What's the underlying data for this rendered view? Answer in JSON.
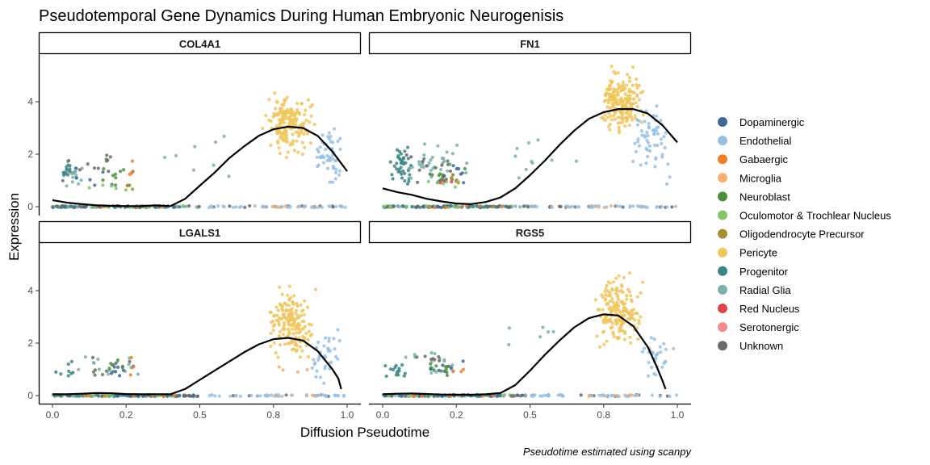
{
  "title": "Pseudotemporal Gene Dynamics During Human Embryonic Neurogenisis",
  "xlabel": "Diffusion Pseudotime",
  "ylabel": "Expression",
  "caption": "Pseudotime estimated using scanpy",
  "x_ticks": [
    "0.0",
    "0.2",
    "0.5",
    "0.8",
    "1.0"
  ],
  "y_ticks": [
    "0",
    "2",
    "4"
  ],
  "legend": [
    {
      "label": "Dopaminergic",
      "color": "#3b6897"
    },
    {
      "label": "Endothelial",
      "color": "#97c1e3"
    },
    {
      "label": "Gabaergic",
      "color": "#ef7f26"
    },
    {
      "label": "Microglia",
      "color": "#f8ae6c"
    },
    {
      "label": "Neuroblast",
      "color": "#4a8f38"
    },
    {
      "label": "Oculomotor & Trochlear Nucleus",
      "color": "#82c567"
    },
    {
      "label": "Oligodendrocyte Precursor",
      "color": "#a88f2f"
    },
    {
      "label": "Pericyte",
      "color": "#f0c65c"
    },
    {
      "label": "Progenitor",
      "color": "#3a8583"
    },
    {
      "label": "Radial Glia",
      "color": "#79b0aa"
    },
    {
      "label": "Red Nucleus",
      "color": "#e0434a"
    },
    {
      "label": "Serotonergic",
      "color": "#f58a8a"
    },
    {
      "label": "Unknown",
      "color": "#6e6868"
    }
  ],
  "chart_data": {
    "type": "scatter",
    "title": "Pseudotemporal Gene Dynamics During Human Embryonic Neurogenisis",
    "xlabel": "Diffusion Pseudotime",
    "ylabel": "Expression",
    "xlim": [
      -0.04,
      1.04
    ],
    "ylim": [
      -0.25,
      5.8
    ],
    "grid": false,
    "legend_position": "right",
    "smoother": "black loess curve per panel",
    "panels": [
      {
        "name": "COL4A1",
        "trend": [
          [
            0.0,
            0.25
          ],
          [
            0.05,
            0.15
          ],
          [
            0.1,
            0.1
          ],
          [
            0.15,
            0.05
          ],
          [
            0.2,
            0.03
          ],
          [
            0.25,
            0.02
          ],
          [
            0.3,
            0.02
          ],
          [
            0.35,
            0.05
          ],
          [
            0.4,
            0.02
          ],
          [
            0.45,
            0.3
          ],
          [
            0.5,
            0.8
          ],
          [
            0.55,
            1.3
          ],
          [
            0.6,
            1.85
          ],
          [
            0.65,
            2.3
          ],
          [
            0.7,
            2.7
          ],
          [
            0.75,
            2.95
          ],
          [
            0.8,
            3.05
          ],
          [
            0.85,
            3.0
          ],
          [
            0.9,
            2.7
          ],
          [
            0.95,
            2.1
          ],
          [
            1.0,
            1.35
          ]
        ],
        "clusters": [
          {
            "type": "Progenitor",
            "x": [
              0.0,
              0.1
            ],
            "y": [
              0.8,
              1.8
            ],
            "n": 18
          },
          {
            "type": "Radial Glia",
            "x": [
              0.0,
              0.15
            ],
            "y": [
              0.5,
              1.9
            ],
            "n": 14
          },
          {
            "type": "Unknown",
            "x": [
              0.0,
              0.3
            ],
            "y": [
              0.7,
              2.3
            ],
            "n": 10
          },
          {
            "type": "Neuroblast",
            "x": [
              0.1,
              0.3
            ],
            "y": [
              0.6,
              2.0
            ],
            "n": 10
          },
          {
            "type": "Gabaergic",
            "x": [
              0.24,
              0.28
            ],
            "y": [
              0.8,
              2.0
            ],
            "n": 4
          },
          {
            "type": "Oligodendrocyte Precursor",
            "x": [
              0.22,
              0.3
            ],
            "y": [
              0.5,
              1.5
            ],
            "n": 4
          },
          {
            "type": "Dopaminergic",
            "x": [
              0.05,
              0.3
            ],
            "y": [
              0.6,
              1.8
            ],
            "n": 6
          },
          {
            "type": "Oculomotor & Trochlear Nucleus",
            "x": [
              0.05,
              0.35
            ],
            "y": [
              0.4,
              1.0
            ],
            "n": 5
          },
          {
            "type": "Pericyte",
            "x": [
              0.7,
              0.9
            ],
            "y": [
              1.8,
              4.6
            ],
            "n": 180
          },
          {
            "type": "Endothelial",
            "x": [
              0.88,
              1.0
            ],
            "y": [
              0.5,
              3.5
            ],
            "n": 55
          },
          {
            "type": "Radial Glia",
            "x": [
              0.3,
              0.72
            ],
            "y": [
              0.5,
              3.0
            ],
            "n": 8
          }
        ]
      },
      {
        "name": "FN1",
        "trend": [
          [
            0.0,
            0.7
          ],
          [
            0.05,
            0.55
          ],
          [
            0.1,
            0.45
          ],
          [
            0.15,
            0.3
          ],
          [
            0.2,
            0.2
          ],
          [
            0.25,
            0.12
          ],
          [
            0.3,
            0.1
          ],
          [
            0.35,
            0.18
          ],
          [
            0.4,
            0.35
          ],
          [
            0.45,
            0.7
          ],
          [
            0.5,
            1.2
          ],
          [
            0.55,
            1.75
          ],
          [
            0.6,
            2.35
          ],
          [
            0.65,
            2.9
          ],
          [
            0.7,
            3.35
          ],
          [
            0.75,
            3.6
          ],
          [
            0.8,
            3.72
          ],
          [
            0.85,
            3.72
          ],
          [
            0.9,
            3.55
          ],
          [
            0.95,
            3.1
          ],
          [
            1.0,
            2.45
          ]
        ],
        "clusters": [
          {
            "type": "Progenitor",
            "x": [
              0.0,
              0.12
            ],
            "y": [
              0.5,
              2.5
            ],
            "n": 40
          },
          {
            "type": "Radial Glia",
            "x": [
              0.0,
              0.35
            ],
            "y": [
              0.4,
              2.6
            ],
            "n": 35
          },
          {
            "type": "Unknown",
            "x": [
              0.0,
              0.3
            ],
            "y": [
              0.6,
              2.5
            ],
            "n": 12
          },
          {
            "type": "Neuroblast",
            "x": [
              0.1,
              0.33
            ],
            "y": [
              0.6,
              1.8
            ],
            "n": 15
          },
          {
            "type": "Gabaergic",
            "x": [
              0.2,
              0.3
            ],
            "y": [
              0.6,
              1.6
            ],
            "n": 4
          },
          {
            "type": "Dopaminergic",
            "x": [
              0.15,
              0.32
            ],
            "y": [
              0.6,
              1.8
            ],
            "n": 8
          },
          {
            "type": "Oculomotor & Trochlear Nucleus",
            "x": [
              0.1,
              0.35
            ],
            "y": [
              0.5,
              1.2
            ],
            "n": 6
          },
          {
            "type": "Red Nucleus",
            "x": [
              0.15,
              0.3
            ],
            "y": [
              0.7,
              1.3
            ],
            "n": 3
          },
          {
            "type": "Pericyte",
            "x": [
              0.72,
              0.9
            ],
            "y": [
              2.5,
              5.5
            ],
            "n": 200
          },
          {
            "type": "Endothelial",
            "x": [
              0.82,
              1.0
            ],
            "y": [
              0.5,
              4.9
            ],
            "n": 60
          },
          {
            "type": "Radial Glia",
            "x": [
              0.32,
              0.72
            ],
            "y": [
              0.5,
              3.5
            ],
            "n": 10
          }
        ]
      },
      {
        "name": "LGALS1",
        "trend": [
          [
            0.0,
            0.05
          ],
          [
            0.05,
            0.05
          ],
          [
            0.1,
            0.07
          ],
          [
            0.15,
            0.1
          ],
          [
            0.2,
            0.09
          ],
          [
            0.25,
            0.06
          ],
          [
            0.3,
            0.05
          ],
          [
            0.35,
            0.05
          ],
          [
            0.4,
            0.05
          ],
          [
            0.45,
            0.25
          ],
          [
            0.5,
            0.6
          ],
          [
            0.55,
            0.95
          ],
          [
            0.6,
            1.3
          ],
          [
            0.65,
            1.65
          ],
          [
            0.7,
            1.95
          ],
          [
            0.75,
            2.15
          ],
          [
            0.8,
            2.2
          ],
          [
            0.85,
            2.1
          ],
          [
            0.9,
            1.7
          ],
          [
            0.95,
            1.0
          ],
          [
            0.97,
            0.65
          ],
          [
            0.98,
            0.25
          ]
        ],
        "clusters": [
          {
            "type": "Progenitor",
            "x": [
              0.0,
              0.1
            ],
            "y": [
              0.5,
              1.5
            ],
            "n": 8
          },
          {
            "type": "Radial Glia",
            "x": [
              0.0,
              0.35
            ],
            "y": [
              0.4,
              2.0
            ],
            "n": 15
          },
          {
            "type": "Unknown",
            "x": [
              0.05,
              0.3
            ],
            "y": [
              0.6,
              2.0
            ],
            "n": 8
          },
          {
            "type": "Neuroblast",
            "x": [
              0.1,
              0.3
            ],
            "y": [
              0.5,
              1.6
            ],
            "n": 8
          },
          {
            "type": "Dopaminergic",
            "x": [
              0.1,
              0.3
            ],
            "y": [
              0.5,
              1.5
            ],
            "n": 6
          },
          {
            "type": "Gabaergic",
            "x": [
              0.24,
              0.28
            ],
            "y": [
              0.6,
              2.0
            ],
            "n": 3
          },
          {
            "type": "Pericyte",
            "x": [
              0.72,
              0.9
            ],
            "y": [
              1.0,
              4.5
            ],
            "n": 170
          },
          {
            "type": "Endothelial",
            "x": [
              0.86,
              1.0
            ],
            "y": [
              0.3,
              3.0
            ],
            "n": 40
          },
          {
            "type": "Microglia",
            "x": [
              0.7,
              0.9
            ],
            "y": [
              0.8,
              1.2
            ],
            "n": 4
          }
        ]
      },
      {
        "name": "RGS5",
        "trend": [
          [
            0.0,
            0.05
          ],
          [
            0.05,
            0.07
          ],
          [
            0.1,
            0.08
          ],
          [
            0.15,
            0.06
          ],
          [
            0.2,
            0.04
          ],
          [
            0.25,
            0.03
          ],
          [
            0.3,
            0.03
          ],
          [
            0.35,
            0.05
          ],
          [
            0.4,
            0.1
          ],
          [
            0.45,
            0.4
          ],
          [
            0.5,
            0.95
          ],
          [
            0.55,
            1.55
          ],
          [
            0.6,
            2.1
          ],
          [
            0.65,
            2.6
          ],
          [
            0.7,
            2.95
          ],
          [
            0.75,
            3.1
          ],
          [
            0.8,
            3.05
          ],
          [
            0.85,
            2.65
          ],
          [
            0.9,
            1.85
          ],
          [
            0.93,
            1.1
          ],
          [
            0.95,
            0.55
          ],
          [
            0.96,
            0.25
          ]
        ],
        "clusters": [
          {
            "type": "Progenitor",
            "x": [
              0.0,
              0.1
            ],
            "y": [
              0.5,
              1.5
            ],
            "n": 15
          },
          {
            "type": "Radial Glia",
            "x": [
              0.0,
              0.35
            ],
            "y": [
              0.4,
              2.0
            ],
            "n": 15
          },
          {
            "type": "Unknown",
            "x": [
              0.05,
              0.3
            ],
            "y": [
              0.6,
              2.0
            ],
            "n": 8
          },
          {
            "type": "Neuroblast",
            "x": [
              0.1,
              0.3
            ],
            "y": [
              0.5,
              1.5
            ],
            "n": 10
          },
          {
            "type": "Dopaminergic",
            "x": [
              0.1,
              0.3
            ],
            "y": [
              0.5,
              1.5
            ],
            "n": 6
          },
          {
            "type": "Gabaergic",
            "x": [
              0.2,
              0.3
            ],
            "y": [
              0.5,
              1.2
            ],
            "n": 3
          },
          {
            "type": "Pericyte",
            "x": [
              0.7,
              0.9
            ],
            "y": [
              1.5,
              4.9
            ],
            "n": 180
          },
          {
            "type": "Endothelial",
            "x": [
              0.85,
              1.0
            ],
            "y": [
              0.5,
              2.5
            ],
            "n": 30
          },
          {
            "type": "Radial Glia",
            "x": [
              0.35,
              0.72
            ],
            "y": [
              0.5,
              3.5
            ],
            "n": 6
          }
        ]
      }
    ],
    "zero_band": [
      {
        "type": "Radial Glia",
        "x": [
          0.0,
          0.5
        ],
        "n": 60
      },
      {
        "type": "Progenitor",
        "x": [
          0.0,
          0.4
        ],
        "n": 40
      },
      {
        "type": "Oculomotor & Trochlear Nucleus",
        "x": [
          0.0,
          0.45
        ],
        "n": 20
      },
      {
        "type": "Dopaminergic",
        "x": [
          0.0,
          0.5
        ],
        "n": 20
      },
      {
        "type": "Unknown",
        "x": [
          0.0,
          1.0
        ],
        "n": 25
      },
      {
        "type": "Gabaergic",
        "x": [
          0.1,
          0.45
        ],
        "n": 8
      },
      {
        "type": "Microglia",
        "x": [
          0.7,
          0.9
        ],
        "n": 12
      },
      {
        "type": "Endothelial",
        "x": [
          0.5,
          1.0
        ],
        "n": 35
      }
    ]
  }
}
